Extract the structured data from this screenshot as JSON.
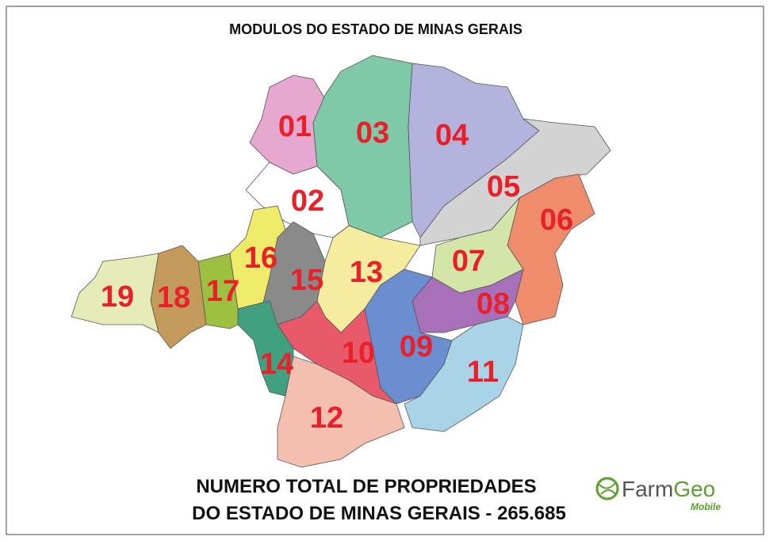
{
  "header": {
    "title": "MODULOS DO ESTADO DE MINAS GERAIS"
  },
  "regions": [
    {
      "label": "01"
    },
    {
      "label": "02"
    },
    {
      "label": "03"
    },
    {
      "label": "04"
    },
    {
      "label": "05"
    },
    {
      "label": "06"
    },
    {
      "label": "07"
    },
    {
      "label": "08"
    },
    {
      "label": "09"
    },
    {
      "label": "10"
    },
    {
      "label": "11"
    },
    {
      "label": "12"
    },
    {
      "label": "13"
    },
    {
      "label": "14"
    },
    {
      "label": "15"
    },
    {
      "label": "16"
    },
    {
      "label": "17"
    },
    {
      "label": "18"
    },
    {
      "label": "19"
    }
  ],
  "footer": {
    "line1": "NUMERO TOTAL DE PROPRIEDADES",
    "line2": "DO ESTADO DE MINAS GERAIS -  265.685"
  },
  "logo": {
    "farm": "Farm",
    "geo": "Geo",
    "mobile": "Mobile"
  }
}
